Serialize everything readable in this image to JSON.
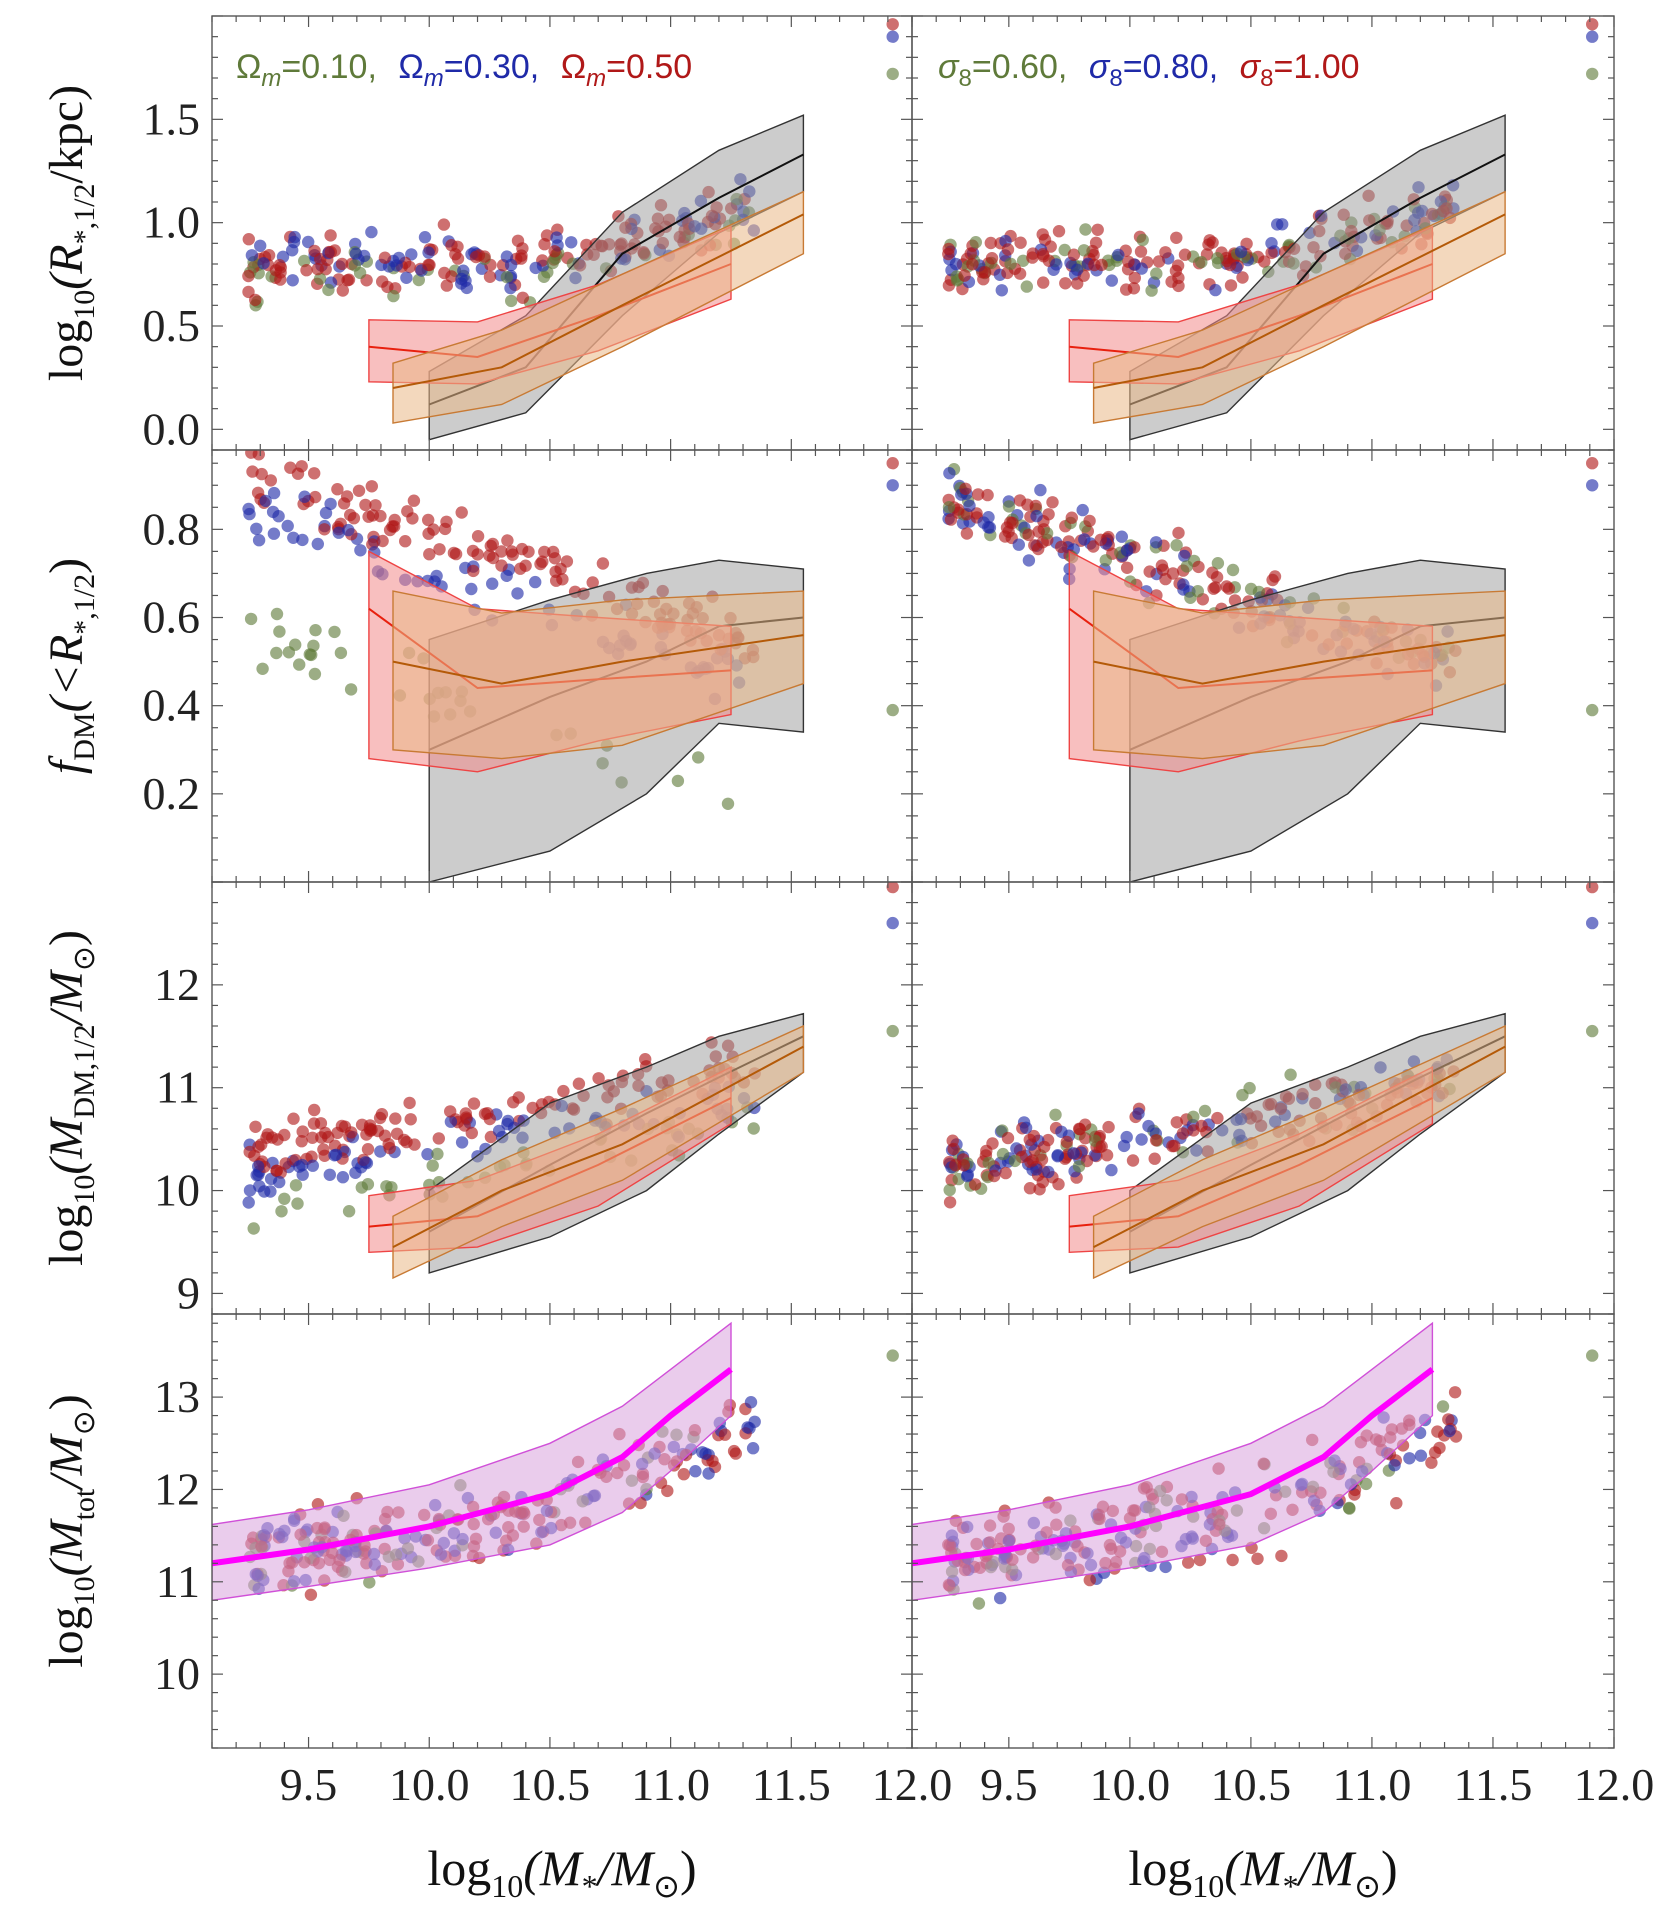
{
  "colors": {
    "green": "#5f7a3a",
    "blue": "#1f2aa8",
    "red": "#b01818",
    "black_band": "#9a9a9a",
    "red_band": "#f38b8b",
    "orange_band": "#eab887",
    "magenta": "#ff00ff",
    "magenta_band": "#d9a2dc"
  },
  "legends": {
    "left": [
      {
        "label": "Ω",
        "sub": "m",
        "value": "=0.10,",
        "color": "green"
      },
      {
        "label": "Ω",
        "sub": "m",
        "value": "=0.30,",
        "color": "blue"
      },
      {
        "label": "Ω",
        "sub": "m",
        "value": "=0.50",
        "color": "red"
      }
    ],
    "right": [
      {
        "label": "σ",
        "sub": "8",
        "value": "=0.60,",
        "color": "green"
      },
      {
        "label": "σ",
        "sub": "8",
        "value": "=0.80,",
        "color": "blue"
      },
      {
        "label": "σ",
        "sub": "8",
        "value": "=1.00",
        "color": "red"
      }
    ]
  },
  "axes": {
    "xlim": [
      9.1,
      12.0
    ],
    "xticks": [
      "9.5",
      "10.0",
      "10.5",
      "11.0",
      "11.5",
      "12.0"
    ],
    "xlabel": {
      "pre": "log",
      "sub": "10",
      "body": "(M",
      "sub2": "*",
      "mid": "/M",
      "sub3": "⊙",
      "post": ")"
    },
    "rows": [
      {
        "ylabel": {
          "pre": "log",
          "sub": "10",
          "body": "(R",
          "sub2": "*,1/2",
          "post": "/kpc)"
        },
        "ylim": [
          -0.1,
          2.0
        ],
        "yticks": [
          "0.0",
          "0.5",
          "1.0",
          "1.5"
        ]
      },
      {
        "ylabel": {
          "pre": "f",
          "sub": "DM",
          "body": "(<R",
          "sub2": "*,1/2",
          "post": ")"
        },
        "ylim": [
          0.0,
          0.98
        ],
        "yticks": [
          "0.2",
          "0.4",
          "0.6",
          "0.8"
        ]
      },
      {
        "ylabel": {
          "pre": "log",
          "sub": "10",
          "body": "(M",
          "sub2": "DM,1/2",
          "mid": "/M",
          "sub3": "⊙",
          "post": ")"
        },
        "ylim": [
          8.8,
          13.0
        ],
        "yticks": [
          "9",
          "10",
          "11",
          "12"
        ]
      },
      {
        "ylabel": {
          "pre": "log",
          "sub": "10",
          "body": "(M",
          "sub2": "tot",
          "mid": "/M",
          "sub3": "⊙",
          "post": ")"
        },
        "ylim": [
          9.2,
          13.9
        ],
        "yticks": [
          "10",
          "11",
          "12",
          "13"
        ]
      }
    ]
  },
  "chart_data": {
    "type": "scatter",
    "x_range": [
      9.1,
      12.0
    ],
    "bands": {
      "row0": [
        {
          "color": "black_band",
          "x": [
            10.0,
            10.4,
            10.8,
            11.2,
            11.55
          ],
          "lo": [
            -0.05,
            0.08,
            0.55,
            0.95,
            1.15
          ],
          "mid": [
            0.12,
            0.3,
            0.85,
            1.12,
            1.33
          ],
          "hi": [
            0.28,
            0.55,
            1.05,
            1.35,
            1.52
          ]
        },
        {
          "color": "red_band",
          "x": [
            9.75,
            10.2,
            10.7,
            11.25
          ],
          "lo": [
            0.23,
            0.22,
            0.38,
            0.63
          ],
          "mid": [
            0.4,
            0.35,
            0.55,
            0.8
          ],
          "hi": [
            0.53,
            0.52,
            0.7,
            0.98
          ]
        },
        {
          "color": "orange_band",
          "x": [
            9.85,
            10.3,
            10.8,
            11.55
          ],
          "lo": [
            0.03,
            0.12,
            0.4,
            0.85
          ],
          "mid": [
            0.2,
            0.3,
            0.6,
            1.04
          ],
          "hi": [
            0.32,
            0.48,
            0.75,
            1.15
          ]
        }
      ],
      "row1": [
        {
          "color": "black_band",
          "x": [
            10.0,
            10.5,
            10.9,
            11.2,
            11.55
          ],
          "lo": [
            0.0,
            0.07,
            0.2,
            0.36,
            0.34
          ],
          "mid": [
            0.3,
            0.42,
            0.5,
            0.58,
            0.6
          ],
          "hi": [
            0.55,
            0.64,
            0.7,
            0.73,
            0.71
          ]
        },
        {
          "color": "red_band",
          "x": [
            9.75,
            10.2,
            10.7,
            11.25
          ],
          "lo": [
            0.28,
            0.25,
            0.32,
            0.38
          ],
          "mid": [
            0.62,
            0.44,
            0.46,
            0.48
          ],
          "hi": [
            0.75,
            0.62,
            0.6,
            0.58
          ]
        },
        {
          "color": "orange_band",
          "x": [
            9.85,
            10.3,
            10.8,
            11.55
          ],
          "lo": [
            0.3,
            0.28,
            0.31,
            0.45
          ],
          "mid": [
            0.5,
            0.45,
            0.5,
            0.56
          ],
          "hi": [
            0.66,
            0.61,
            0.64,
            0.66
          ]
        }
      ],
      "row2": [
        {
          "color": "black_band",
          "x": [
            10.0,
            10.5,
            10.9,
            11.2,
            11.55
          ],
          "lo": [
            9.2,
            9.55,
            10.0,
            10.55,
            11.15
          ],
          "mid": [
            9.6,
            10.25,
            10.75,
            11.1,
            11.5
          ],
          "hi": [
            10.0,
            10.85,
            11.2,
            11.5,
            11.72
          ]
        },
        {
          "color": "red_band",
          "x": [
            9.75,
            10.2,
            10.7,
            11.25
          ],
          "lo": [
            9.4,
            9.45,
            9.85,
            10.65
          ],
          "mid": [
            9.65,
            9.75,
            10.25,
            10.9
          ],
          "hi": [
            9.95,
            10.1,
            10.55,
            11.2
          ]
        },
        {
          "color": "orange_band",
          "x": [
            9.85,
            10.3,
            10.8,
            11.55
          ],
          "lo": [
            9.15,
            9.65,
            10.1,
            11.15
          ],
          "mid": [
            9.45,
            10.0,
            10.45,
            11.4
          ],
          "hi": [
            9.75,
            10.3,
            10.8,
            11.6
          ]
        }
      ],
      "row3": [
        {
          "color": "magenta_band",
          "x": [
            9.1,
            9.5,
            10.0,
            10.5,
            10.8,
            11.0,
            11.25
          ],
          "lo": [
            10.8,
            10.95,
            11.15,
            11.4,
            11.75,
            12.2,
            12.8
          ],
          "mid": [
            11.2,
            11.35,
            11.6,
            11.95,
            12.35,
            12.8,
            13.3
          ],
          "hi": [
            11.62,
            11.78,
            12.05,
            12.5,
            12.9,
            13.3,
            13.8
          ]
        }
      ]
    },
    "outliers": [
      {
        "x": 11.92,
        "row0": [
          1.72,
          1.9,
          1.96
        ],
        "row1": [
          0.39,
          0.9,
          0.95
        ],
        "row2": [
          11.55,
          12.6,
          12.95
        ],
        "row3": [
          13.45
        ]
      }
    ]
  }
}
